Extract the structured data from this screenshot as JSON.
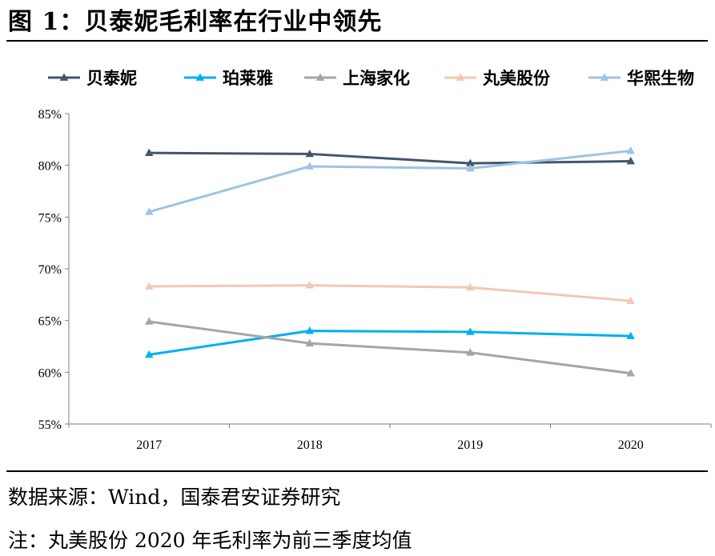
{
  "figure": {
    "title": "图 1：贝泰妮毛利率在行业中领先",
    "source": "数据来源：Wind，国泰君安证券研究",
    "note": "注：丸美股份 2020 年毛利率为前三季度均值"
  },
  "chart_data": {
    "type": "line",
    "x": [
      "2017",
      "2018",
      "2019",
      "2020"
    ],
    "ylim": [
      55,
      85
    ],
    "yticks": [
      55,
      60,
      65,
      70,
      75,
      80,
      85
    ],
    "ytick_labels": [
      "55%",
      "60%",
      "65%",
      "70%",
      "75%",
      "80%",
      "85%"
    ],
    "y_unit": "%",
    "grid": false,
    "legend_position": "top",
    "marker": "triangle",
    "series": [
      {
        "name": "贝泰妮",
        "color": "#44546A",
        "values": [
          81.2,
          81.1,
          80.2,
          80.4
        ]
      },
      {
        "name": "珀莱雅",
        "color": "#00B0F0",
        "values": [
          61.7,
          64.0,
          63.9,
          63.5
        ]
      },
      {
        "name": "上海家化",
        "color": "#A5A5A5",
        "values": [
          64.9,
          62.8,
          61.9,
          59.9
        ]
      },
      {
        "name": "丸美股份",
        "color": "#F4C7B5",
        "values": [
          68.3,
          68.4,
          68.2,
          66.9
        ]
      },
      {
        "name": "华熙生物",
        "color": "#9DC3E6",
        "values": [
          75.5,
          79.9,
          79.7,
          81.4
        ]
      }
    ]
  }
}
